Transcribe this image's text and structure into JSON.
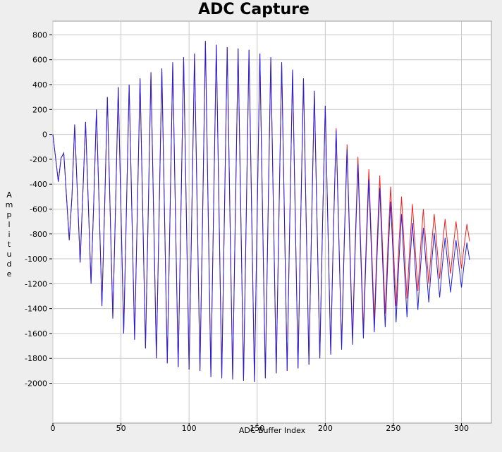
{
  "chart_data": {
    "type": "line",
    "title": "ADC Capture",
    "x_label": "ADC Buffer Index",
    "y_label": "Amplitude",
    "xlim": [
      0,
      322
    ],
    "xticks": [
      0,
      50,
      100,
      150,
      200,
      250,
      300
    ],
    "ylim": [
      -2320,
      910
    ],
    "yticks": [
      -2000,
      -1800,
      -1600,
      -1400,
      -1200,
      -1000,
      -800,
      -600,
      -400,
      -200,
      0,
      200,
      400,
      600,
      800
    ],
    "grid": true,
    "x": [
      0,
      2,
      4,
      6,
      8,
      10,
      12,
      14,
      16,
      18,
      20,
      22,
      24,
      26,
      28,
      30,
      32,
      34,
      36,
      38,
      40,
      42,
      44,
      46,
      48,
      50,
      52,
      54,
      56,
      58,
      60,
      62,
      64,
      66,
      68,
      70,
      72,
      74,
      76,
      78,
      80,
      82,
      84,
      86,
      88,
      90,
      92,
      94,
      96,
      98,
      100,
      102,
      104,
      106,
      108,
      110,
      112,
      114,
      116,
      118,
      120,
      122,
      124,
      126,
      128,
      130,
      132,
      134,
      136,
      138,
      140,
      142,
      144,
      146,
      148,
      150,
      152,
      154,
      156,
      158,
      160,
      162,
      164,
      166,
      168,
      170,
      172,
      174,
      176,
      178,
      180,
      182,
      184,
      186,
      188,
      190,
      192,
      194,
      196,
      198,
      200,
      202,
      204,
      206,
      208,
      210,
      212,
      214,
      216,
      218,
      220,
      222,
      224,
      226,
      228,
      230,
      232,
      234,
      236,
      238,
      240,
      242,
      244,
      246,
      248,
      250,
      252,
      254,
      256,
      258,
      260,
      262,
      264,
      266,
      268,
      270,
      272,
      274,
      276,
      278,
      280,
      282,
      284,
      286,
      288,
      290,
      292,
      294,
      296,
      298,
      300,
      302,
      304,
      306
    ],
    "series": [
      {
        "color": "#f02020",
        "values": [
          0,
          -190,
          -380,
          -190,
          -150,
          -500,
          -850,
          -500,
          80,
          -475,
          -1030,
          -475,
          100,
          -550,
          -1200,
          -550,
          200,
          -590,
          -1380,
          -590,
          300,
          -590,
          -1480,
          -590,
          380,
          -610,
          -1600,
          -610,
          400,
          -625,
          -1650,
          -625,
          450,
          -635,
          -1720,
          -635,
          500,
          -650,
          -1800,
          -650,
          530,
          -655,
          -1840,
          -655,
          580,
          -645,
          -1870,
          -645,
          620,
          -635,
          -1890,
          -635,
          650,
          -625,
          -1900,
          -625,
          750,
          -600,
          -1950,
          -600,
          720,
          -620,
          -1960,
          -620,
          700,
          -635,
          -1970,
          -635,
          690,
          -645,
          -1980,
          -645,
          680,
          -655,
          -1990,
          -655,
          650,
          -655,
          -1960,
          -655,
          620,
          -650,
          -1920,
          -650,
          580,
          -660,
          -1900,
          -660,
          520,
          -680,
          -1880,
          -680,
          450,
          -700,
          -1850,
          -700,
          350,
          -725,
          -1800,
          -725,
          230,
          -765,
          -1760,
          -765,
          50,
          -825,
          -1700,
          -825,
          -80,
          -860,
          -1640,
          -860,
          -180,
          -875,
          -1570,
          -875,
          -280,
          -890,
          -1500,
          -890,
          -330,
          -885,
          -1440,
          -885,
          -420,
          -900,
          -1380,
          -900,
          -500,
          -910,
          -1320,
          -910,
          -560,
          -910,
          -1260,
          -910,
          -600,
          -900,
          -1200,
          -900,
          -640,
          -900,
          -1160,
          -900,
          -680,
          -900,
          -1120,
          -900,
          -700,
          -890,
          -1080,
          -890,
          -720,
          -860
        ]
      },
      {
        "color": "#2020e0",
        "values": [
          0,
          -190,
          -380,
          -190,
          -150,
          -500,
          -850,
          -500,
          80,
          -475,
          -1030,
          -475,
          100,
          -550,
          -1200,
          -550,
          200,
          -590,
          -1380,
          -590,
          300,
          -590,
          -1480,
          -590,
          380,
          -610,
          -1600,
          -610,
          400,
          -625,
          -1650,
          -625,
          450,
          -635,
          -1720,
          -635,
          500,
          -650,
          -1800,
          -650,
          530,
          -655,
          -1840,
          -655,
          580,
          -645,
          -1870,
          -645,
          620,
          -635,
          -1890,
          -635,
          650,
          -625,
          -1900,
          -625,
          750,
          -600,
          -1950,
          -600,
          720,
          -620,
          -1960,
          -620,
          700,
          -635,
          -1970,
          -635,
          690,
          -645,
          -1980,
          -645,
          680,
          -655,
          -1990,
          -655,
          650,
          -655,
          -1960,
          -655,
          620,
          -650,
          -1920,
          -650,
          580,
          -660,
          -1900,
          -660,
          520,
          -680,
          -1880,
          -680,
          450,
          -700,
          -1850,
          -700,
          350,
          -725,
          -1800,
          -725,
          230,
          -770,
          -1770,
          -780,
          30,
          -850,
          -1730,
          -860,
          -120,
          -905,
          -1690,
          -915,
          -240,
          -940,
          -1640,
          -950,
          -360,
          -975,
          -1590,
          -985,
          -430,
          -990,
          -1550,
          -1000,
          -540,
          -1025,
          -1510,
          -1035,
          -640,
          -1055,
          -1470,
          -1060,
          -710,
          -1060,
          -1410,
          -1060,
          -750,
          -1050,
          -1350,
          -1050,
          -790,
          -1050,
          -1310,
          -1050,
          -830,
          -1050,
          -1270,
          -1050,
          -850,
          -1040,
          -1230,
          -1040,
          -870,
          -1010
        ]
      }
    ]
  }
}
